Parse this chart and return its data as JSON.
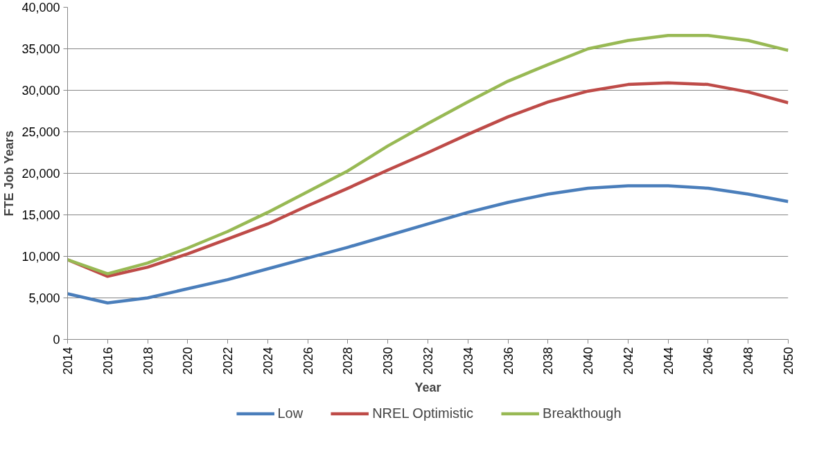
{
  "chart_data": {
    "type": "line",
    "xlabel": "Year",
    "ylabel": "FTE Job Years",
    "x": [
      2014,
      2016,
      2018,
      2020,
      2022,
      2024,
      2026,
      2028,
      2030,
      2032,
      2034,
      2036,
      2038,
      2040,
      2042,
      2044,
      2046,
      2048,
      2050
    ],
    "xlim": [
      2014,
      2050
    ],
    "xticks": [
      2014,
      2016,
      2018,
      2020,
      2022,
      2024,
      2026,
      2028,
      2030,
      2032,
      2034,
      2036,
      2038,
      2040,
      2042,
      2044,
      2046,
      2048,
      2050
    ],
    "ylim": [
      0,
      40000
    ],
    "yticks": [
      {
        "value": 0,
        "label": "0"
      },
      {
        "value": 5000,
        "label": "5,000"
      },
      {
        "value": 10000,
        "label": "10,000"
      },
      {
        "value": 15000,
        "label": "15,000"
      },
      {
        "value": 20000,
        "label": "20,000"
      },
      {
        "value": 25000,
        "label": "25,000"
      },
      {
        "value": 30000,
        "label": "30,000"
      },
      {
        "value": 35000,
        "label": "35,000"
      },
      {
        "value": 40000,
        "label": "40,000"
      }
    ],
    "grid": "y",
    "legend": "bottom",
    "marker": "none",
    "line_style": "solid",
    "series": [
      {
        "name": "Low",
        "color": "#4a7ebb",
        "values": [
          5500,
          4400,
          5000,
          6100,
          7200,
          8500,
          9800,
          11100,
          12500,
          13900,
          15300,
          16500,
          17500,
          18200,
          18500,
          18500,
          18200,
          17500,
          16600
        ]
      },
      {
        "name": "NREL Optimistic",
        "color": "#be4b48",
        "values": [
          9600,
          7600,
          8700,
          10300,
          12100,
          13900,
          16100,
          18200,
          20400,
          22500,
          24700,
          26800,
          28600,
          29900,
          30700,
          30900,
          30700,
          29800,
          28500
        ]
      },
      {
        "name": "Breakthough",
        "color": "#98b954",
        "values": [
          9600,
          7900,
          9200,
          11000,
          13000,
          15300,
          17800,
          20300,
          23300,
          26000,
          28600,
          31100,
          33100,
          35000,
          36000,
          36600,
          36600,
          36000,
          34800
        ]
      }
    ]
  }
}
